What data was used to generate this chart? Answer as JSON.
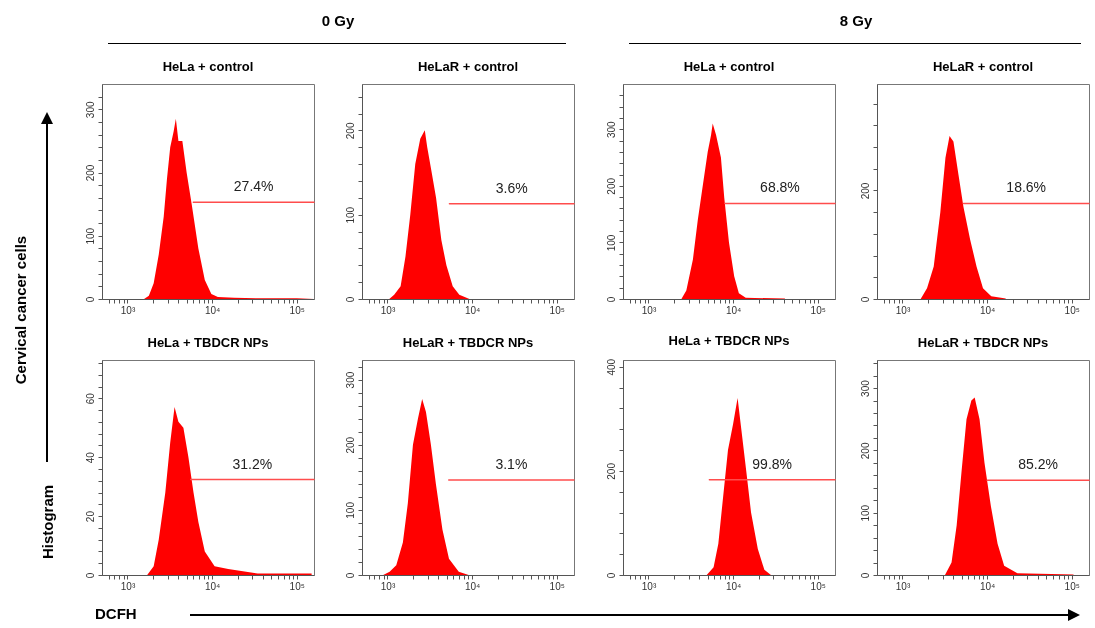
{
  "chart_data": [
    {
      "type": "area",
      "title": "HeLa + control",
      "ylabel": "Cervical cancer cells",
      "annotations": [
        "0 Gy"
      ],
      "log": "x",
      "grid": false,
      "marker": "none",
      "xlim": [
        500,
        160000
      ],
      "ylim": [
        0,
        340
      ],
      "xticks": [
        {
          "value": 600,
          "label": null
        },
        {
          "value": 700,
          "label": null
        },
        {
          "value": 800,
          "label": null
        },
        {
          "value": 900,
          "label": null
        },
        {
          "value": 1000,
          "label": "10³"
        },
        {
          "value": 2000,
          "label": null
        },
        {
          "value": 3000,
          "label": null
        },
        {
          "value": 4000,
          "label": null
        },
        {
          "value": 5000,
          "label": null
        },
        {
          "value": 6000,
          "label": null
        },
        {
          "value": 7000,
          "label": null
        },
        {
          "value": 8000,
          "label": null
        },
        {
          "value": 9000,
          "label": null
        },
        {
          "value": 10000,
          "label": "10⁴"
        },
        {
          "value": 20000,
          "label": null
        },
        {
          "value": 30000,
          "label": null
        },
        {
          "value": 40000,
          "label": null
        },
        {
          "value": 50000,
          "label": null
        },
        {
          "value": 60000,
          "label": null
        },
        {
          "value": 70000,
          "label": null
        },
        {
          "value": 80000,
          "label": null
        },
        {
          "value": 90000,
          "label": null
        },
        {
          "value": 100000,
          "label": "10⁵"
        }
      ],
      "yticks": [
        0,
        {
          "value": 20,
          "label": null
        },
        {
          "value": 40,
          "label": null
        },
        {
          "value": 60,
          "label": null
        },
        {
          "value": 80,
          "label": null
        },
        100,
        {
          "value": 120,
          "label": null
        },
        {
          "value": 140,
          "label": null
        },
        {
          "value": 160,
          "label": null
        },
        {
          "value": 180,
          "label": null
        },
        200,
        {
          "value": 220,
          "label": null
        },
        {
          "value": 240,
          "label": null
        },
        {
          "value": 260,
          "label": null
        },
        {
          "value": 280,
          "label": null
        },
        300,
        {
          "value": 320,
          "label": null
        }
      ],
      "series": [
        {
          "type": "area",
          "color": "#ff0000",
          "x": [
            1570,
            1790,
            2040,
            2340,
            2680,
            2930,
            3200,
            3510,
            3730,
            4000,
            4450,
            5000,
            5740,
            6880,
            8200,
            9800,
            11700,
            18300,
            34500,
            100000,
            158000
          ],
          "values": [
            0,
            5,
            25,
            70,
            130,
            190,
            240,
            265,
            285,
            250,
            250,
            200,
            150,
            80,
            30,
            8,
            3,
            2,
            1,
            1,
            0
          ]
        },
        {
          "type": "line",
          "name": "27.4%",
          "color": "#ff4d4d",
          "x": [
            6000,
            160000
          ],
          "values": [
            153,
            153
          ]
        }
      ]
    },
    {
      "type": "area",
      "title": "HeLaR + control",
      "log": "x",
      "grid": false,
      "marker": "none",
      "xlim": [
        500,
        160000
      ],
      "ylim": [
        0,
        255
      ],
      "xticks": [
        {
          "value": 600,
          "label": null
        },
        {
          "value": 700,
          "label": null
        },
        {
          "value": 800,
          "label": null
        },
        {
          "value": 900,
          "label": null
        },
        {
          "value": 1000,
          "label": "10³"
        },
        {
          "value": 2000,
          "label": null
        },
        {
          "value": 3000,
          "label": null
        },
        {
          "value": 4000,
          "label": null
        },
        {
          "value": 5000,
          "label": null
        },
        {
          "value": 6000,
          "label": null
        },
        {
          "value": 7000,
          "label": null
        },
        {
          "value": 8000,
          "label": null
        },
        {
          "value": 9000,
          "label": null
        },
        {
          "value": 10000,
          "label": "10⁴"
        },
        {
          "value": 20000,
          "label": null
        },
        {
          "value": 30000,
          "label": null
        },
        {
          "value": 40000,
          "label": null
        },
        {
          "value": 50000,
          "label": null
        },
        {
          "value": 60000,
          "label": null
        },
        {
          "value": 70000,
          "label": null
        },
        {
          "value": 80000,
          "label": null
        },
        {
          "value": 90000,
          "label": null
        },
        {
          "value": 100000,
          "label": "10⁵"
        }
      ],
      "yticks": [
        0,
        {
          "value": 20,
          "label": null
        },
        {
          "value": 40,
          "label": null
        },
        {
          "value": 60,
          "label": null
        },
        {
          "value": 80,
          "label": null
        },
        100,
        {
          "value": 120,
          "label": null
        },
        {
          "value": 140,
          "label": null
        },
        {
          "value": 160,
          "label": null
        },
        {
          "value": 180,
          "label": null
        },
        200,
        {
          "value": 220,
          "label": null
        },
        {
          "value": 240,
          "label": null
        }
      ],
      "series": [
        {
          "type": "area",
          "color": "#ff0000",
          "x": [
            1050,
            1200,
            1430,
            1630,
            1860,
            2130,
            2440,
            2760,
            2950,
            3330,
            3750,
            4330,
            4970,
            5900,
            7060,
            9300
          ],
          "values": [
            0,
            5,
            15,
            50,
            100,
            160,
            190,
            200,
            180,
            150,
            120,
            70,
            40,
            15,
            5,
            0
          ]
        },
        {
          "type": "line",
          "name": "3.6%",
          "color": "#ff4d4d",
          "x": [
            5400,
            160000
          ],
          "values": [
            113,
            113
          ]
        }
      ]
    },
    {
      "type": "area",
      "title": "HeLa + control",
      "annotations": [
        "8 Gy"
      ],
      "log": "x",
      "grid": false,
      "marker": "none",
      "xlim": [
        500,
        160000
      ],
      "ylim": [
        0,
        380
      ],
      "xticks": [
        {
          "value": 600,
          "label": null
        },
        {
          "value": 700,
          "label": null
        },
        {
          "value": 800,
          "label": null
        },
        {
          "value": 900,
          "label": null
        },
        {
          "value": 1000,
          "label": "10³"
        },
        {
          "value": 2000,
          "label": null
        },
        {
          "value": 3000,
          "label": null
        },
        {
          "value": 4000,
          "label": null
        },
        {
          "value": 5000,
          "label": null
        },
        {
          "value": 6000,
          "label": null
        },
        {
          "value": 7000,
          "label": null
        },
        {
          "value": 8000,
          "label": null
        },
        {
          "value": 9000,
          "label": null
        },
        {
          "value": 10000,
          "label": "10⁴"
        },
        {
          "value": 20000,
          "label": null
        },
        {
          "value": 30000,
          "label": null
        },
        {
          "value": 40000,
          "label": null
        },
        {
          "value": 50000,
          "label": null
        },
        {
          "value": 60000,
          "label": null
        },
        {
          "value": 70000,
          "label": null
        },
        {
          "value": 80000,
          "label": null
        },
        {
          "value": 90000,
          "label": null
        },
        {
          "value": 100000,
          "label": "10⁵"
        }
      ],
      "yticks": [
        0,
        {
          "value": 20,
          "label": null
        },
        {
          "value": 40,
          "label": null
        },
        {
          "value": 60,
          "label": null
        },
        {
          "value": 80,
          "label": null
        },
        100,
        {
          "value": 120,
          "label": null
        },
        {
          "value": 140,
          "label": null
        },
        {
          "value": 160,
          "label": null
        },
        {
          "value": 180,
          "label": null
        },
        200,
        {
          "value": 220,
          "label": null
        },
        {
          "value": 240,
          "label": null
        },
        {
          "value": 260,
          "label": null
        },
        {
          "value": 280,
          "label": null
        },
        300,
        {
          "value": 320,
          "label": null
        },
        {
          "value": 340,
          "label": null
        },
        {
          "value": 360,
          "label": null
        }
      ],
      "series": [
        {
          "type": "area",
          "color": "#ff0000",
          "x": [
            2450,
            2800,
            3350,
            3830,
            4380,
            5010,
            5490,
            5740,
            6290,
            7180,
            7850,
            8940,
            10300,
            11700,
            14100,
            41000
          ],
          "values": [
            0,
            15,
            70,
            140,
            200,
            260,
            290,
            310,
            290,
            250,
            180,
            100,
            40,
            10,
            2,
            1
          ]
        },
        {
          "type": "line",
          "name": "68.8%",
          "color": "#ff4d4d",
          "x": [
            8000,
            160000
          ],
          "values": [
            169,
            169
          ]
        }
      ]
    },
    {
      "type": "area",
      "title": "HeLaR + control",
      "log": "x",
      "grid": false,
      "marker": "none",
      "xlim": [
        500,
        160000
      ],
      "ylim": [
        0,
        396
      ],
      "xticks": [
        {
          "value": 600,
          "label": null
        },
        {
          "value": 700,
          "label": null
        },
        {
          "value": 800,
          "label": null
        },
        {
          "value": 900,
          "label": null
        },
        {
          "value": 1000,
          "label": "10³"
        },
        {
          "value": 2000,
          "label": null
        },
        {
          "value": 3000,
          "label": null
        },
        {
          "value": 4000,
          "label": null
        },
        {
          "value": 5000,
          "label": null
        },
        {
          "value": 6000,
          "label": null
        },
        {
          "value": 7000,
          "label": null
        },
        {
          "value": 8000,
          "label": null
        },
        {
          "value": 9000,
          "label": null
        },
        {
          "value": 10000,
          "label": "10⁴"
        },
        {
          "value": 20000,
          "label": null
        },
        {
          "value": 30000,
          "label": null
        },
        {
          "value": 40000,
          "label": null
        },
        {
          "value": 50000,
          "label": null
        },
        {
          "value": 60000,
          "label": null
        },
        {
          "value": 70000,
          "label": null
        },
        {
          "value": 80000,
          "label": null
        },
        {
          "value": 90000,
          "label": null
        },
        {
          "value": 100000,
          "label": "10⁵"
        }
      ],
      "yticks": [
        0,
        {
          "value": 40,
          "label": null
        },
        {
          "value": 80,
          "label": null
        },
        {
          "value": 120,
          "label": null
        },
        {
          "value": 160,
          "label": null
        },
        200,
        {
          "value": 240,
          "label": null
        },
        {
          "value": 280,
          "label": null
        },
        {
          "value": 320,
          "label": null
        },
        {
          "value": 360,
          "label": null
        }
      ],
      "series": [
        {
          "type": "area",
          "color": "#ff0000",
          "x": [
            1640,
            1950,
            2340,
            2800,
            3220,
            3600,
            4000,
            4580,
            5250,
            6290,
            7500,
            8940,
            11200,
            16600
          ],
          "values": [
            0,
            20,
            60,
            160,
            260,
            300,
            290,
            230,
            170,
            110,
            60,
            20,
            5,
            1
          ]
        },
        {
          "type": "line",
          "name": "18.6%",
          "color": "#ff4d4d",
          "x": [
            5250,
            160000
          ],
          "values": [
            176,
            176
          ]
        }
      ]
    },
    {
      "type": "area",
      "title": "HeLa + TBDCR NPs",
      "ylabel": "Histogram",
      "xlabel": "DCFH",
      "log": "x",
      "grid": false,
      "marker": "none",
      "xlim": [
        500,
        160000
      ],
      "ylim": [
        0,
        73
      ],
      "xticks": [
        {
          "value": 600,
          "label": null
        },
        {
          "value": 700,
          "label": null
        },
        {
          "value": 800,
          "label": null
        },
        {
          "value": 900,
          "label": null
        },
        {
          "value": 1000,
          "label": "10³"
        },
        {
          "value": 2000,
          "label": null
        },
        {
          "value": 3000,
          "label": null
        },
        {
          "value": 4000,
          "label": null
        },
        {
          "value": 5000,
          "label": null
        },
        {
          "value": 6000,
          "label": null
        },
        {
          "value": 7000,
          "label": null
        },
        {
          "value": 8000,
          "label": null
        },
        {
          "value": 9000,
          "label": null
        },
        {
          "value": 10000,
          "label": "10⁴"
        },
        {
          "value": 20000,
          "label": null
        },
        {
          "value": 30000,
          "label": null
        },
        {
          "value": 40000,
          "label": null
        },
        {
          "value": 50000,
          "label": null
        },
        {
          "value": 60000,
          "label": null
        },
        {
          "value": 70000,
          "label": null
        },
        {
          "value": 80000,
          "label": null
        },
        {
          "value": 90000,
          "label": null
        },
        {
          "value": 100000,
          "label": "10⁵"
        }
      ],
      "yticks": [
        0,
        {
          "value": 4,
          "label": null
        },
        {
          "value": 8,
          "label": null
        },
        {
          "value": 12,
          "label": null
        },
        {
          "value": 16,
          "label": null
        },
        20,
        {
          "value": 24,
          "label": null
        },
        {
          "value": 28,
          "label": null
        },
        {
          "value": 32,
          "label": null
        },
        {
          "value": 36,
          "label": null
        },
        40,
        {
          "value": 44,
          "label": null
        },
        {
          "value": 48,
          "label": null
        },
        {
          "value": 52,
          "label": null
        },
        {
          "value": 56,
          "label": null
        },
        60,
        {
          "value": 64,
          "label": null
        },
        {
          "value": 68,
          "label": null
        },
        {
          "value": 72,
          "label": null
        }
      ],
      "series": [
        {
          "type": "area",
          "color": "#ff0000",
          "x": [
            1710,
            2040,
            2340,
            2800,
            3200,
            3600,
            4000,
            4580,
            5250,
            6030,
            6880,
            8200,
            10700,
            15500,
            34500,
            150000
          ],
          "values": [
            0,
            3,
            12,
            28,
            45,
            57,
            52,
            50,
            40,
            28,
            18,
            8,
            3,
            2,
            0.5,
            0.5
          ]
        },
        {
          "type": "line",
          "name": "31.2%",
          "color": "#ff4d4d",
          "x": [
            5580,
            160000
          ],
          "values": [
            32.4,
            32.4
          ]
        }
      ]
    },
    {
      "type": "area",
      "title": "HeLaR + TBDCR NPs",
      "log": "x",
      "grid": false,
      "marker": "none",
      "xlim": [
        500,
        160000
      ],
      "ylim": [
        0,
        330
      ],
      "xticks": [
        {
          "value": 600,
          "label": null
        },
        {
          "value": 700,
          "label": null
        },
        {
          "value": 800,
          "label": null
        },
        {
          "value": 900,
          "label": null
        },
        {
          "value": 1000,
          "label": "10³"
        },
        {
          "value": 2000,
          "label": null
        },
        {
          "value": 3000,
          "label": null
        },
        {
          "value": 4000,
          "label": null
        },
        {
          "value": 5000,
          "label": null
        },
        {
          "value": 6000,
          "label": null
        },
        {
          "value": 7000,
          "label": null
        },
        {
          "value": 8000,
          "label": null
        },
        {
          "value": 9000,
          "label": null
        },
        {
          "value": 10000,
          "label": "10⁴"
        },
        {
          "value": 20000,
          "label": null
        },
        {
          "value": 30000,
          "label": null
        },
        {
          "value": 40000,
          "label": null
        },
        {
          "value": 50000,
          "label": null
        },
        {
          "value": 60000,
          "label": null
        },
        {
          "value": 70000,
          "label": null
        },
        {
          "value": 80000,
          "label": null
        },
        {
          "value": 90000,
          "label": null
        },
        {
          "value": 100000,
          "label": "10⁵"
        }
      ],
      "yticks": [
        0,
        {
          "value": 20,
          "label": null
        },
        {
          "value": 40,
          "label": null
        },
        {
          "value": 60,
          "label": null
        },
        {
          "value": 80,
          "label": null
        },
        100,
        {
          "value": 120,
          "label": null
        },
        {
          "value": 140,
          "label": null
        },
        {
          "value": 160,
          "label": null
        },
        {
          "value": 180,
          "label": null
        },
        200,
        {
          "value": 220,
          "label": null
        },
        {
          "value": 240,
          "label": null
        },
        {
          "value": 260,
          "label": null
        },
        {
          "value": 280,
          "label": null
        },
        300,
        {
          "value": 320,
          "label": null
        }
      ],
      "series": [
        {
          "type": "area",
          "color": "#ff0000",
          "x": [
            890,
            1060,
            1270,
            1520,
            1740,
            2000,
            2290,
            2570,
            2850,
            3260,
            3730,
            4460,
            5330,
            6960,
            9100
          ],
          "values": [
            0,
            5,
            15,
            50,
            110,
            200,
            240,
            270,
            250,
            200,
            140,
            70,
            25,
            5,
            0
          ]
        },
        {
          "type": "line",
          "name": "3.1%",
          "color": "#ff4d4d",
          "x": [
            5300,
            160000
          ],
          "values": [
            146,
            146
          ]
        }
      ]
    },
    {
      "type": "area",
      "title": "HeLa + TBDCR NPs",
      "log": "x",
      "grid": false,
      "marker": "none",
      "xlim": [
        500,
        160000
      ],
      "ylim": [
        0,
        413
      ],
      "xticks": [
        {
          "value": 600,
          "label": null
        },
        {
          "value": 700,
          "label": null
        },
        {
          "value": 800,
          "label": null
        },
        {
          "value": 900,
          "label": null
        },
        {
          "value": 1000,
          "label": "10³"
        },
        {
          "value": 2000,
          "label": null
        },
        {
          "value": 3000,
          "label": null
        },
        {
          "value": 4000,
          "label": null
        },
        {
          "value": 5000,
          "label": null
        },
        {
          "value": 6000,
          "label": null
        },
        {
          "value": 7000,
          "label": null
        },
        {
          "value": 8000,
          "label": null
        },
        {
          "value": 9000,
          "label": null
        },
        {
          "value": 10000,
          "label": "10⁴"
        },
        {
          "value": 20000,
          "label": null
        },
        {
          "value": 30000,
          "label": null
        },
        {
          "value": 40000,
          "label": null
        },
        {
          "value": 50000,
          "label": null
        },
        {
          "value": 60000,
          "label": null
        },
        {
          "value": 70000,
          "label": null
        },
        {
          "value": 80000,
          "label": null
        },
        {
          "value": 90000,
          "label": null
        },
        {
          "value": 100000,
          "label": "10⁵"
        }
      ],
      "yticks": [
        0,
        {
          "value": 40,
          "label": null
        },
        {
          "value": 80,
          "label": null
        },
        {
          "value": 120,
          "label": null
        },
        {
          "value": 160,
          "label": null
        },
        200,
        {
          "value": 240,
          "label": null
        },
        {
          "value": 280,
          "label": null
        },
        {
          "value": 320,
          "label": null
        },
        {
          "value": 360,
          "label": null
        },
        400
      ],
      "series": [
        {
          "type": "area",
          "color": "#ff0000",
          "x": [
            4880,
            5880,
            6690,
            7620,
            8700,
            10000,
            11300,
            12500,
            14300,
            16300,
            19600,
            23400,
            28000
          ],
          "values": [
            0,
            15,
            60,
            150,
            240,
            290,
            340,
            280,
            200,
            120,
            50,
            10,
            0
          ]
        },
        {
          "type": "line",
          "name": "99.8%",
          "color": "#ff4d4d",
          "x": [
            5240,
            160000
          ],
          "values": [
            183,
            183
          ]
        }
      ]
    },
    {
      "type": "area",
      "title": "HeLaR + TBDCR NPs",
      "log": "x",
      "grid": false,
      "marker": "none",
      "xlim": [
        500,
        160000
      ],
      "ylim": [
        0,
        345
      ],
      "xticks": [
        {
          "value": 600,
          "label": null
        },
        {
          "value": 700,
          "label": null
        },
        {
          "value": 800,
          "label": null
        },
        {
          "value": 900,
          "label": null
        },
        {
          "value": 1000,
          "label": "10³"
        },
        {
          "value": 2000,
          "label": null
        },
        {
          "value": 3000,
          "label": null
        },
        {
          "value": 4000,
          "label": null
        },
        {
          "value": 5000,
          "label": null
        },
        {
          "value": 6000,
          "label": null
        },
        {
          "value": 7000,
          "label": null
        },
        {
          "value": 8000,
          "label": null
        },
        {
          "value": 9000,
          "label": null
        },
        {
          "value": 10000,
          "label": "10⁴"
        },
        {
          "value": 20000,
          "label": null
        },
        {
          "value": 30000,
          "label": null
        },
        {
          "value": 40000,
          "label": null
        },
        {
          "value": 50000,
          "label": null
        },
        {
          "value": 60000,
          "label": null
        },
        {
          "value": 70000,
          "label": null
        },
        {
          "value": 80000,
          "label": null
        },
        {
          "value": 90000,
          "label": null
        },
        {
          "value": 100000,
          "label": "10⁵"
        }
      ],
      "yticks": [
        0,
        {
          "value": 20,
          "label": null
        },
        {
          "value": 40,
          "label": null
        },
        {
          "value": 60,
          "label": null
        },
        {
          "value": 80,
          "label": null
        },
        100,
        {
          "value": 120,
          "label": null
        },
        {
          "value": 140,
          "label": null
        },
        {
          "value": 160,
          "label": null
        },
        {
          "value": 180,
          "label": null
        },
        200,
        {
          "value": 220,
          "label": null
        },
        {
          "value": 240,
          "label": null
        },
        {
          "value": 260,
          "label": null
        },
        {
          "value": 280,
          "label": null
        },
        300,
        {
          "value": 320,
          "label": null
        },
        {
          "value": 340,
          "label": null
        }
      ],
      "series": [
        {
          "type": "area",
          "color": "#ff0000",
          "x": [
            3180,
            3800,
            4370,
            5020,
            5710,
            6520,
            7130,
            8140,
            9310,
            11100,
            13300,
            15900,
            22800,
            105000
          ],
          "values": [
            0,
            20,
            80,
            170,
            250,
            280,
            285,
            250,
            180,
            110,
            50,
            15,
            3,
            1
          ]
        },
        {
          "type": "line",
          "name": "85.2%",
          "color": "#ff4d4d",
          "x": [
            10000,
            160000
          ],
          "values": [
            152,
            152
          ]
        }
      ]
    }
  ]
}
